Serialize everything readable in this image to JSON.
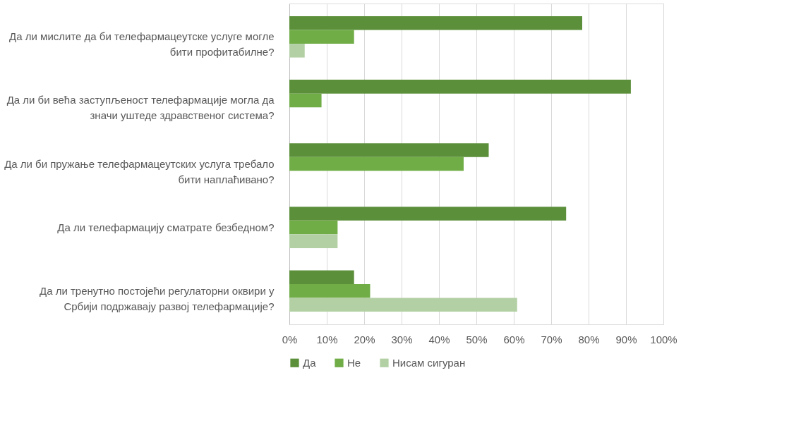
{
  "chart_data": {
    "type": "bar",
    "orientation": "horizontal",
    "categories": [
      "Да ли мислите да би телефармацеутске услуге могле бити профитабилне?",
      "Да ли би већа заступљеност телефармације могла да значи уштеде здравственог система?",
      "Да ли би пружање телефармацеутских услуга требало бити наплаћивано?",
      "Да ли телефармацију сматрате безбедном?",
      "Да ли тренутно постојећи регулаторни оквири у Србији подржавају развој телефармације?"
    ],
    "series": [
      {
        "name": "Да",
        "color": "#5b8f3a",
        "values": [
          78.3,
          91.3,
          53.3,
          74.0,
          17.3
        ]
      },
      {
        "name": "Не",
        "color": "#70ad47",
        "values": [
          17.3,
          8.6,
          46.6,
          12.9,
          21.6
        ]
      },
      {
        "name": "Нисам сигуран",
        "color": "#b3d0a5",
        "values": [
          4.1,
          0,
          0,
          12.9,
          60.9
        ]
      }
    ],
    "xlim": [
      0,
      100
    ],
    "xticks": [
      {
        "value": 0,
        "label": "0%"
      },
      {
        "value": 10,
        "label": "10%"
      },
      {
        "value": 20,
        "label": "20%"
      },
      {
        "value": 30,
        "label": "30%"
      },
      {
        "value": 40,
        "label": "40%"
      },
      {
        "value": 50,
        "label": "50%"
      },
      {
        "value": 60,
        "label": "60%"
      },
      {
        "value": 70,
        "label": "70%"
      },
      {
        "value": 80,
        "label": "80%"
      },
      {
        "value": 90,
        "label": "90%"
      },
      {
        "value": 100,
        "label": "100%"
      }
    ],
    "grid": "x",
    "legend": "bottom"
  }
}
